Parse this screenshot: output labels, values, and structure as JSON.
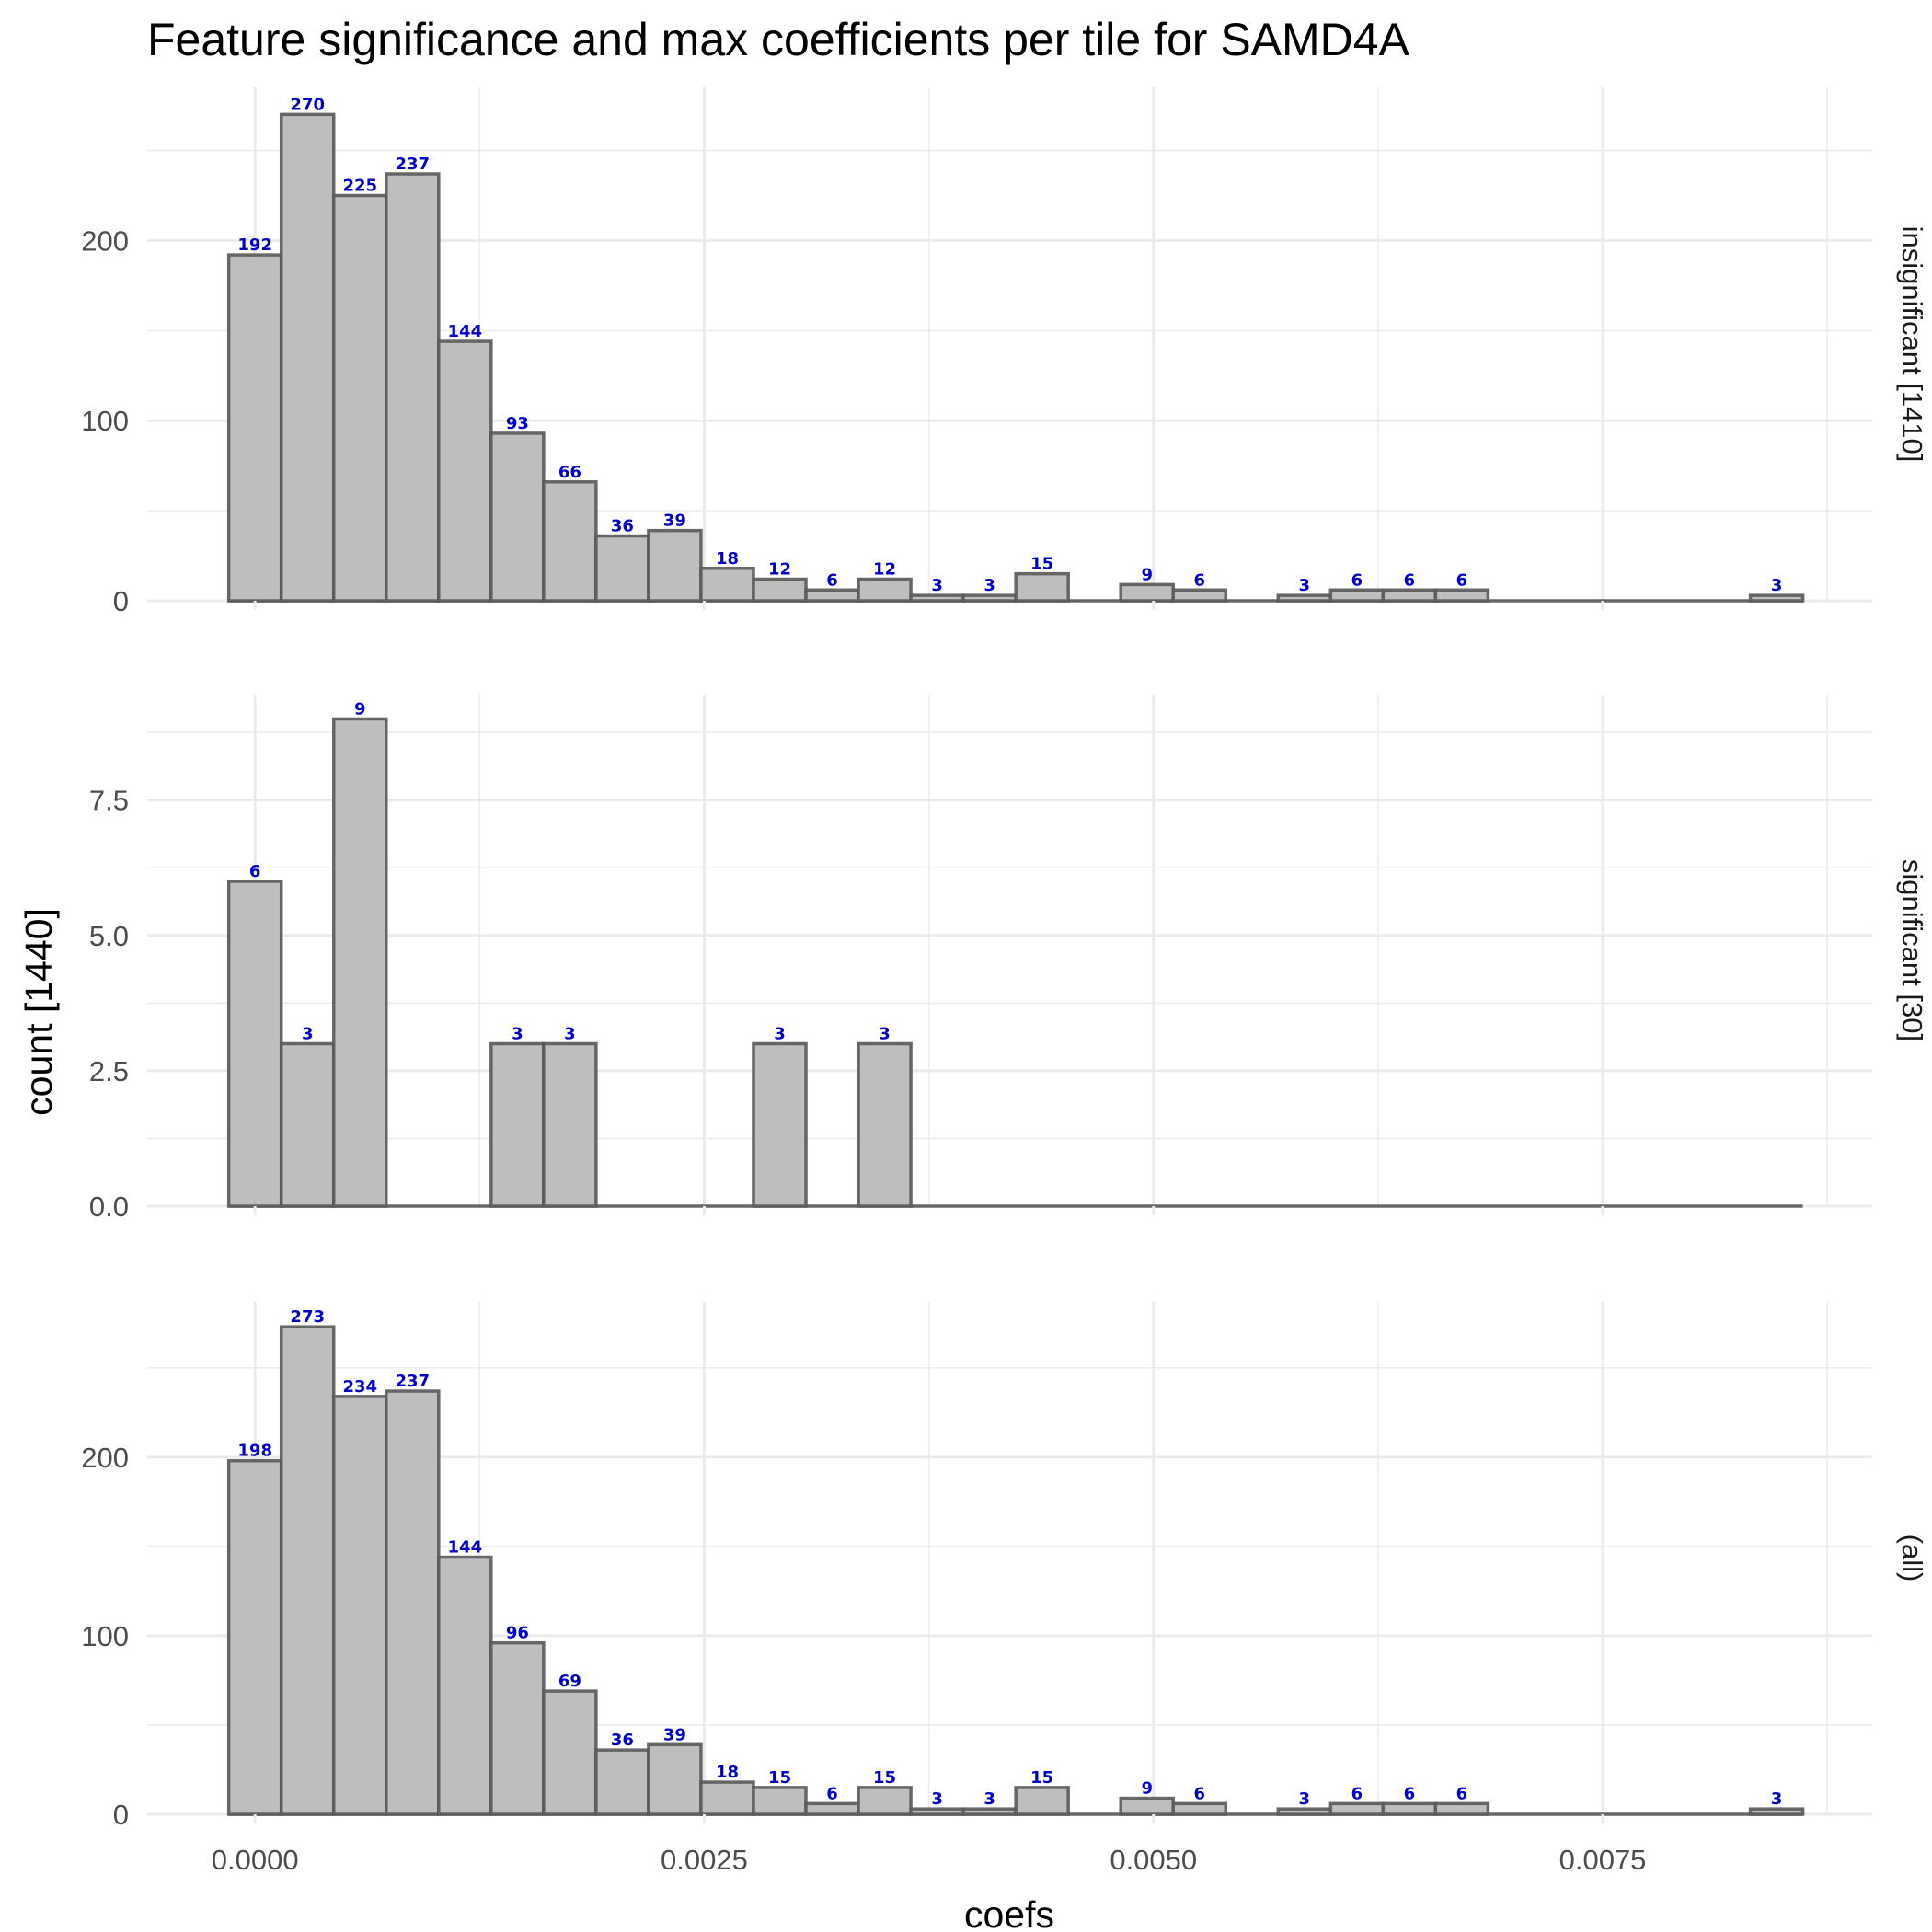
{
  "chart_data": {
    "type": "bar",
    "title": "Feature significance and max coefficients per tile for SAMD4A",
    "xlabel": "coefs",
    "ylabel": "count [1440]",
    "xlim": [
      -0.0006,
      0.009
    ],
    "x_ticks": [
      0,
      0.0025,
      0.005,
      0.0075
    ],
    "x_tick_labels": [
      "0.0000",
      "0.0025",
      "0.0050",
      "0.0075"
    ],
    "bin_start": -0.000146,
    "bin_width": 0.000292,
    "bin_count": 30,
    "grid": true,
    "bar_fill": "#bebebe",
    "bar_stroke": "#595959",
    "label_color": "#0000cc",
    "facets": [
      {
        "strip": "insignificant [1410]",
        "ylim": [
          0,
          285
        ],
        "y_ticks": [
          0,
          100,
          200
        ],
        "y_tick_labels": [
          "0",
          "100",
          "200"
        ],
        "values": [
          192,
          270,
          225,
          237,
          144,
          93,
          66,
          36,
          39,
          18,
          12,
          6,
          12,
          3,
          3,
          15,
          0,
          9,
          6,
          0,
          3,
          6,
          6,
          6,
          0,
          0,
          0,
          0,
          0,
          3
        ]
      },
      {
        "strip": "significant [30]",
        "ylim": [
          0,
          9.45
        ],
        "y_ticks": [
          0,
          2.5,
          5,
          7.5
        ],
        "y_tick_labels": [
          "0.0",
          "2.5",
          "5.0",
          "7.5"
        ],
        "values": [
          6,
          3,
          9,
          0,
          0,
          3,
          3,
          0,
          0,
          0,
          3,
          0,
          3,
          0,
          0,
          0,
          0,
          0,
          0,
          0,
          0,
          0,
          0,
          0,
          0,
          0,
          0,
          0,
          0,
          0
        ]
      },
      {
        "strip": "(all)",
        "ylim": [
          0,
          287
        ],
        "y_ticks": [
          0,
          100,
          200
        ],
        "y_tick_labels": [
          "0",
          "100",
          "200"
        ],
        "values": [
          198,
          273,
          234,
          237,
          144,
          96,
          69,
          36,
          39,
          18,
          15,
          6,
          15,
          3,
          3,
          15,
          0,
          9,
          6,
          0,
          3,
          6,
          6,
          6,
          0,
          0,
          0,
          0,
          0,
          3
        ]
      }
    ]
  }
}
